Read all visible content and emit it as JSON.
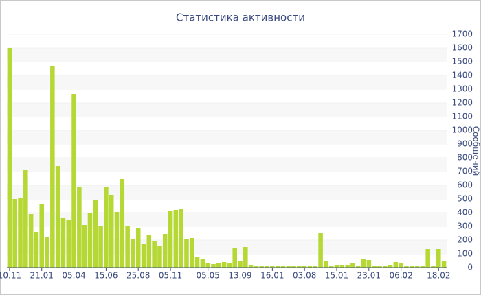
{
  "chart_data": {
    "type": "bar",
    "title": "Статистика активности",
    "y_label": "Сообщений",
    "categories": [
      "10.11",
      null,
      null,
      null,
      null,
      null,
      "21.01",
      null,
      null,
      null,
      null,
      null,
      "05.04",
      null,
      null,
      null,
      null,
      null,
      "15.06",
      null,
      null,
      null,
      null,
      null,
      "25.08",
      null,
      null,
      null,
      null,
      null,
      "05.11",
      null,
      null,
      null,
      null,
      null,
      null,
      "05.05",
      null,
      null,
      null,
      null,
      null,
      "13.09",
      null,
      null,
      null,
      null,
      null,
      "16.01",
      null,
      null,
      null,
      null,
      null,
      "03.08",
      null,
      null,
      null,
      null,
      null,
      "15.01",
      null,
      null,
      null,
      null,
      null,
      "23.01",
      null,
      null,
      null,
      null,
      null,
      "06.02",
      null,
      null,
      null,
      null,
      null,
      null,
      "18.02",
      null
    ],
    "values": [
      1600,
      500,
      510,
      710,
      390,
      260,
      460,
      220,
      1470,
      740,
      360,
      350,
      1265,
      590,
      310,
      400,
      490,
      300,
      590,
      530,
      405,
      645,
      305,
      205,
      290,
      170,
      235,
      190,
      155,
      245,
      415,
      420,
      430,
      210,
      215,
      80,
      65,
      35,
      25,
      35,
      40,
      35,
      140,
      45,
      150,
      20,
      15,
      10,
      10,
      10,
      10,
      10,
      10,
      10,
      10,
      10,
      10,
      10,
      255,
      45,
      15,
      20,
      20,
      20,
      30,
      10,
      60,
      55,
      10,
      10,
      10,
      20,
      40,
      35,
      10,
      10,
      10,
      10,
      135,
      10,
      135,
      45
    ],
    "color": "#b5d834",
    "ylim": [
      0,
      1700
    ],
    "yticks": [
      0,
      100,
      200,
      300,
      400,
      500,
      600,
      700,
      800,
      900,
      1000,
      1100,
      1200,
      1300,
      1400,
      1500,
      1600,
      1700
    ],
    "grid": true
  }
}
